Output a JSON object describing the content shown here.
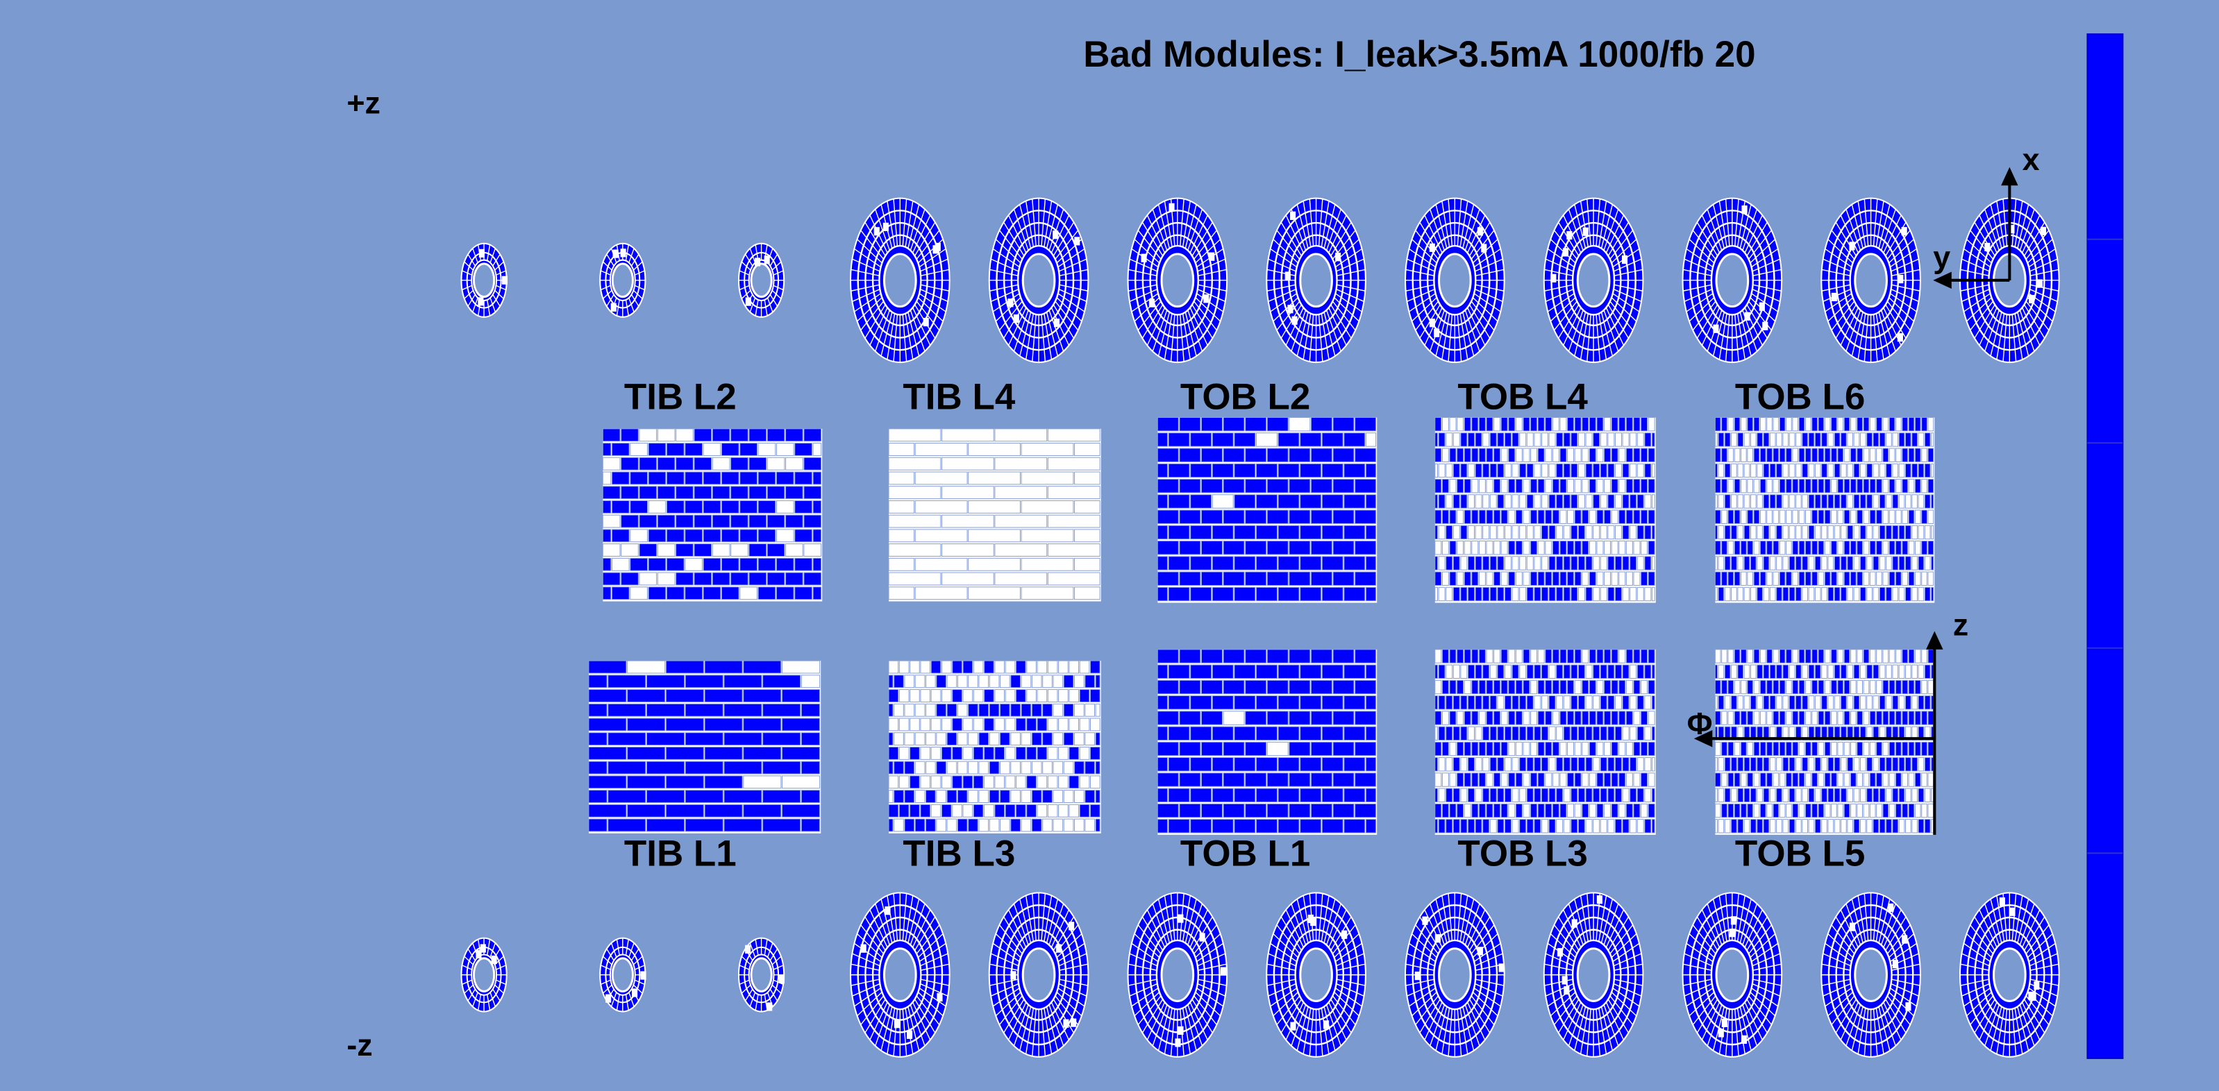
{
  "title": "Bad Modules: I_leak>3.5mA 1000/fb 20",
  "sides": {
    "plus": "+z",
    "minus": "-z"
  },
  "layers": {
    "top": [
      "TIB L2",
      "TIB L4",
      "TOB L2",
      "TOB L4",
      "TOB L6"
    ],
    "bottom": [
      "TIB L1",
      "TIB L3",
      "TOB L1",
      "TOB L3",
      "TOB L5"
    ]
  },
  "axes": {
    "x": "x",
    "y": "y",
    "z": "z",
    "phi": "Φ"
  }
}
